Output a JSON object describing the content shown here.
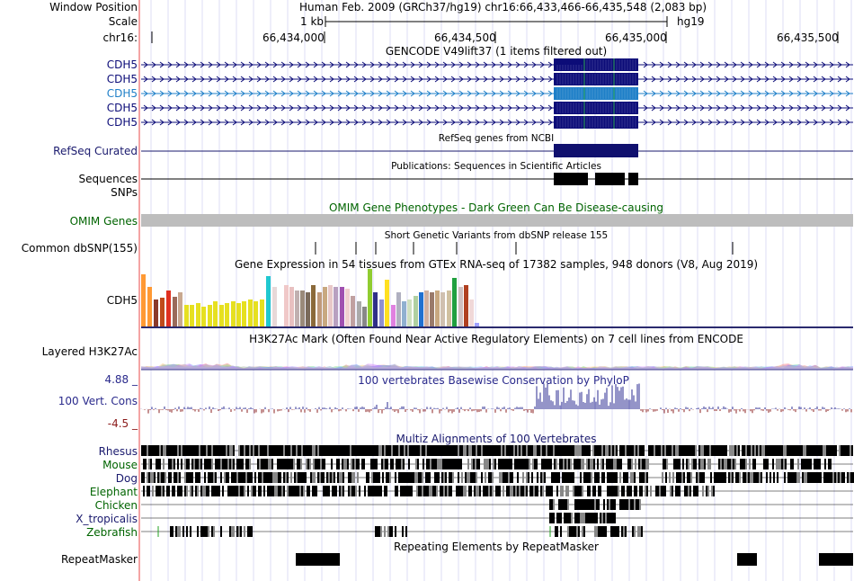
{
  "header": {
    "window_position_label": "Window Position",
    "window_position_value": "Human Feb. 2009 (GRCh37/hg19)   chr16:66,433,466-66,435,548 (2,083 bp)",
    "scale_label": "Scale",
    "scale_value": "1 kb",
    "assembly": "hg19",
    "chrom_label": "chr16:",
    "ticks": [
      "66,434,000",
      "66,434,500",
      "66,435,000",
      "66,435,500"
    ]
  },
  "tracks": {
    "gencode": {
      "title": "GENCODE V49lift37 (1 items filtered out)",
      "rows": [
        "CDH5",
        "CDH5",
        "CDH5",
        "CDH5",
        "CDH5"
      ],
      "colors": {
        "dark": "#0c0c78",
        "light": "#1e7fc8"
      }
    },
    "refseq": {
      "label": "RefSeq Curated",
      "title": "RefSeq genes from NCBI"
    },
    "publications": {
      "label": "Sequences",
      "title": "Publications: Sequences in Scientific Articles"
    },
    "snps": {
      "label": "SNPs"
    },
    "omim": {
      "label": "OMIM Genes",
      "title": "OMIM Gene Phenotypes - Dark Green Can Be Disease-causing",
      "color": "#006400"
    },
    "dbsnp": {
      "label": "Common dbSNP(155)",
      "title": "Short Genetic Variants from dbSNP release 155"
    },
    "gtex": {
      "label": "CDH5",
      "title": "Gene Expression in 54 tissues from GTEx RNA-seq of 17382 samples, 948 donors (V8, Aug 2019)"
    },
    "h3k27ac": {
      "label": "Layered H3K27Ac",
      "title": "H3K27Ac Mark (Often Found Near Active Regulatory Elements) on 7 cell lines from ENCODE"
    },
    "phylop": {
      "label": "100 Vert. Cons",
      "title": "100 vertebrates Basewise Conservation by PhyloP",
      "max": "4.88 _",
      "min": "-4.5 _",
      "color": "#1a1a8c"
    },
    "multiz": {
      "title": "Multiz Alignments of 100 Vertebrates",
      "species": [
        "Rhesus",
        "Mouse",
        "Dog",
        "Elephant",
        "Chicken",
        "X_tropicalis",
        "Zebrafish"
      ]
    },
    "repeatmasker": {
      "label": "RepeatMasker",
      "title": "Repeating Elements by RepeatMasker"
    }
  },
  "colors": {
    "navy": "#1a1a6e",
    "darkgreen": "#006400",
    "grid": "#c8c8f0",
    "divider": "#e84848"
  }
}
